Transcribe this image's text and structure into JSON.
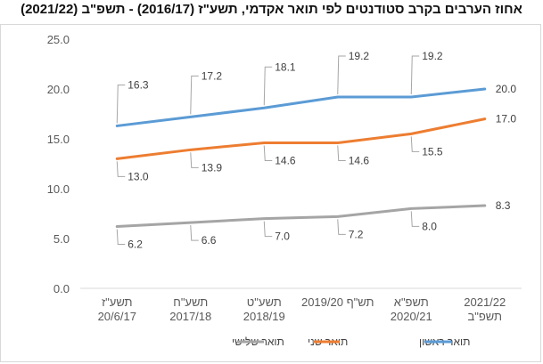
{
  "title": "אחוז הערבים בקרב סטודנטים לפי תואר אקדמי, תשע\"ז (2016/17) - תשפ\"ב (2021/22)",
  "chart_data": {
    "type": "line",
    "title": "אחוז הערבים בקרב סטודנטים לפי תואר אקדמי, תשע\"ז (2016/17) - תשפ\"ב (2021/22)",
    "categories": [
      [
        "תשע\"ז",
        "20/6/17"
      ],
      [
        "תשע\"ח",
        "2017/18"
      ],
      [
        "תשע\"ט",
        "2018/19"
      ],
      [
        "2019/20 תש\"ף",
        ""
      ],
      [
        "תשפ\"א",
        "2020/21"
      ],
      [
        "2021/22",
        "תשפ\"ב"
      ]
    ],
    "series": [
      {
        "name": "תואר ראשון",
        "color": "#5b9bd5",
        "values": [
          16.3,
          17.2,
          18.1,
          19.2,
          19.2,
          20.0
        ],
        "labels": [
          "16.3",
          "17.2",
          "18.1",
          "19.2",
          "19.2",
          "20.0"
        ]
      },
      {
        "name": "תואר שני",
        "color": "#ed7d31",
        "values": [
          13.0,
          13.9,
          14.6,
          14.6,
          15.5,
          17.0
        ],
        "labels": [
          "13.0",
          "13.9",
          "14.6",
          "14.6",
          "15.5",
          "17.0"
        ]
      },
      {
        "name": "תואר שלישי",
        "color": "#a5a5a5",
        "values": [
          6.2,
          6.6,
          7.0,
          7.2,
          8.0,
          8.3
        ],
        "labels": [
          "6.2",
          "6.6",
          "7.0",
          "7.2",
          "8.0",
          "8.3"
        ]
      }
    ],
    "ylim": [
      0,
      25
    ],
    "yticks": [
      "0.0",
      "5.0",
      "10.0",
      "15.0",
      "20.0",
      "25.0"
    ],
    "grid": false,
    "legend": "bottom"
  }
}
